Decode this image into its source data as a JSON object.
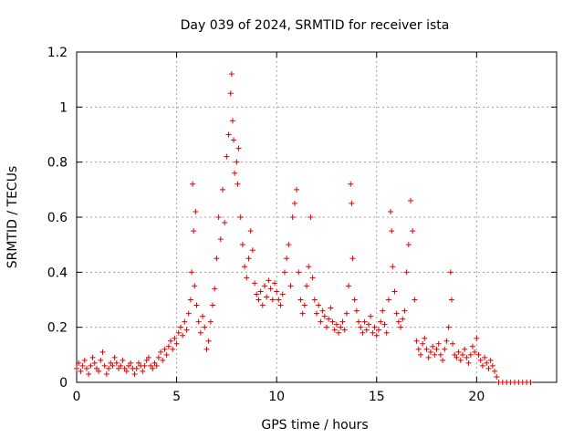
{
  "chart_data": {
    "type": "scatter",
    "title": "Day 039 of 2024, SRMTID for receiver ista",
    "xlabel": "GPS time / hours",
    "ylabel": "SRMTID / TECUs",
    "xlim": [
      0,
      24
    ],
    "ylim": [
      0,
      1.2
    ],
    "grid": true,
    "marker": "+",
    "x_ticks": [
      {
        "value": 0,
        "label": "0"
      },
      {
        "value": 5,
        "label": "5"
      },
      {
        "value": 10,
        "label": "10"
      },
      {
        "value": 15,
        "label": "15"
      },
      {
        "value": 20,
        "label": "20"
      }
    ],
    "y_ticks": [
      {
        "value": 0,
        "label": "0"
      },
      {
        "value": 0.2,
        "label": "0.2"
      },
      {
        "value": 0.4,
        "label": "0.4"
      },
      {
        "value": 0.6,
        "label": "0.6"
      },
      {
        "value": 0.8,
        "label": "0.8"
      },
      {
        "value": 1.0,
        "label": "1"
      },
      {
        "value": 1.2,
        "label": "1.2"
      }
    ],
    "series": [
      {
        "name": "SRMTID",
        "color": "#e00000",
        "points": [
          [
            0.0,
            0.05
          ],
          [
            0.1,
            0.07
          ],
          [
            0.2,
            0.04
          ],
          [
            0.3,
            0.06
          ],
          [
            0.4,
            0.08
          ],
          [
            0.5,
            0.05
          ],
          [
            0.6,
            0.03
          ],
          [
            0.7,
            0.06
          ],
          [
            0.8,
            0.09
          ],
          [
            0.9,
            0.07
          ],
          [
            1.0,
            0.05
          ],
          [
            1.1,
            0.04
          ],
          [
            1.2,
            0.08
          ],
          [
            1.3,
            0.11
          ],
          [
            1.4,
            0.06
          ],
          [
            1.5,
            0.03
          ],
          [
            1.6,
            0.05
          ],
          [
            1.7,
            0.07
          ],
          [
            1.8,
            0.06
          ],
          [
            1.9,
            0.09
          ],
          [
            2.0,
            0.07
          ],
          [
            2.1,
            0.05
          ],
          [
            2.2,
            0.06
          ],
          [
            2.3,
            0.08
          ],
          [
            2.4,
            0.05
          ],
          [
            2.5,
            0.04
          ],
          [
            2.6,
            0.06
          ],
          [
            2.7,
            0.07
          ],
          [
            2.8,
            0.05
          ],
          [
            2.9,
            0.03
          ],
          [
            3.0,
            0.05
          ],
          [
            3.1,
            0.07
          ],
          [
            3.2,
            0.06
          ],
          [
            3.3,
            0.04
          ],
          [
            3.4,
            0.06
          ],
          [
            3.5,
            0.08
          ],
          [
            3.6,
            0.09
          ],
          [
            3.7,
            0.06
          ],
          [
            3.8,
            0.05
          ],
          [
            3.9,
            0.07
          ],
          [
            4.0,
            0.06
          ],
          [
            4.1,
            0.09
          ],
          [
            4.2,
            0.11
          ],
          [
            4.3,
            0.08
          ],
          [
            4.4,
            0.12
          ],
          [
            4.5,
            0.1
          ],
          [
            4.6,
            0.13
          ],
          [
            4.7,
            0.15
          ],
          [
            4.8,
            0.12
          ],
          [
            4.9,
            0.16
          ],
          [
            5.0,
            0.14
          ],
          [
            5.1,
            0.18
          ],
          [
            5.2,
            0.2
          ],
          [
            5.3,
            0.17
          ],
          [
            5.4,
            0.22
          ],
          [
            5.5,
            0.19
          ],
          [
            5.6,
            0.25
          ],
          [
            5.7,
            0.3
          ],
          [
            5.75,
            0.4
          ],
          [
            5.8,
            0.72
          ],
          [
            5.85,
            0.55
          ],
          [
            5.9,
            0.35
          ],
          [
            5.95,
            0.62
          ],
          [
            6.0,
            0.28
          ],
          [
            6.1,
            0.22
          ],
          [
            6.2,
            0.18
          ],
          [
            6.3,
            0.24
          ],
          [
            6.4,
            0.2
          ],
          [
            6.5,
            0.12
          ],
          [
            6.6,
            0.15
          ],
          [
            6.7,
            0.22
          ],
          [
            6.8,
            0.28
          ],
          [
            6.9,
            0.34
          ],
          [
            7.0,
            0.45
          ],
          [
            7.1,
            0.6
          ],
          [
            7.2,
            0.52
          ],
          [
            7.3,
            0.7
          ],
          [
            7.4,
            0.58
          ],
          [
            7.5,
            0.82
          ],
          [
            7.6,
            0.9
          ],
          [
            7.7,
            1.05
          ],
          [
            7.75,
            1.12
          ],
          [
            7.8,
            0.95
          ],
          [
            7.85,
            0.88
          ],
          [
            7.9,
            0.76
          ],
          [
            8.0,
            0.8
          ],
          [
            8.05,
            0.72
          ],
          [
            8.1,
            0.85
          ],
          [
            8.2,
            0.6
          ],
          [
            8.3,
            0.5
          ],
          [
            8.4,
            0.42
          ],
          [
            8.5,
            0.38
          ],
          [
            8.6,
            0.45
          ],
          [
            8.7,
            0.55
          ],
          [
            8.8,
            0.48
          ],
          [
            8.9,
            0.36
          ],
          [
            9.0,
            0.32
          ],
          [
            9.1,
            0.3
          ],
          [
            9.2,
            0.33
          ],
          [
            9.3,
            0.28
          ],
          [
            9.4,
            0.35
          ],
          [
            9.5,
            0.31
          ],
          [
            9.6,
            0.37
          ],
          [
            9.7,
            0.34
          ],
          [
            9.8,
            0.3
          ],
          [
            9.9,
            0.36
          ],
          [
            10.0,
            0.33
          ],
          [
            10.1,
            0.3
          ],
          [
            10.2,
            0.28
          ],
          [
            10.3,
            0.32
          ],
          [
            10.4,
            0.4
          ],
          [
            10.5,
            0.45
          ],
          [
            10.6,
            0.5
          ],
          [
            10.7,
            0.35
          ],
          [
            10.8,
            0.6
          ],
          [
            10.9,
            0.65
          ],
          [
            11.0,
            0.7
          ],
          [
            11.1,
            0.4
          ],
          [
            11.2,
            0.3
          ],
          [
            11.3,
            0.25
          ],
          [
            11.4,
            0.28
          ],
          [
            11.5,
            0.35
          ],
          [
            11.6,
            0.42
          ],
          [
            11.7,
            0.6
          ],
          [
            11.8,
            0.38
          ],
          [
            11.9,
            0.3
          ],
          [
            12.0,
            0.25
          ],
          [
            12.1,
            0.28
          ],
          [
            12.2,
            0.22
          ],
          [
            12.3,
            0.26
          ],
          [
            12.4,
            0.24
          ],
          [
            12.5,
            0.2
          ],
          [
            12.6,
            0.23
          ],
          [
            12.7,
            0.27
          ],
          [
            12.8,
            0.22
          ],
          [
            12.9,
            0.19
          ],
          [
            13.0,
            0.21
          ],
          [
            13.1,
            0.18
          ],
          [
            13.2,
            0.2
          ],
          [
            13.3,
            0.22
          ],
          [
            13.4,
            0.19
          ],
          [
            13.5,
            0.25
          ],
          [
            13.6,
            0.35
          ],
          [
            13.7,
            0.72
          ],
          [
            13.75,
            0.65
          ],
          [
            13.8,
            0.45
          ],
          [
            13.9,
            0.3
          ],
          [
            14.0,
            0.26
          ],
          [
            14.1,
            0.22
          ],
          [
            14.2,
            0.2
          ],
          [
            14.3,
            0.18
          ],
          [
            14.4,
            0.22
          ],
          [
            14.5,
            0.19
          ],
          [
            14.6,
            0.21
          ],
          [
            14.7,
            0.24
          ],
          [
            14.8,
            0.18
          ],
          [
            14.9,
            0.2
          ],
          [
            15.0,
            0.17
          ],
          [
            15.1,
            0.19
          ],
          [
            15.2,
            0.22
          ],
          [
            15.3,
            0.26
          ],
          [
            15.4,
            0.21
          ],
          [
            15.5,
            0.18
          ],
          [
            15.6,
            0.3
          ],
          [
            15.7,
            0.62
          ],
          [
            15.75,
            0.55
          ],
          [
            15.8,
            0.42
          ],
          [
            15.9,
            0.33
          ],
          [
            16.0,
            0.25
          ],
          [
            16.1,
            0.22
          ],
          [
            16.2,
            0.2
          ],
          [
            16.3,
            0.23
          ],
          [
            16.4,
            0.26
          ],
          [
            16.5,
            0.4
          ],
          [
            16.6,
            0.5
          ],
          [
            16.7,
            0.66
          ],
          [
            16.8,
            0.55
          ],
          [
            16.9,
            0.3
          ],
          [
            17.0,
            0.15
          ],
          [
            17.1,
            0.12
          ],
          [
            17.2,
            0.1
          ],
          [
            17.3,
            0.14
          ],
          [
            17.4,
            0.16
          ],
          [
            17.5,
            0.12
          ],
          [
            17.6,
            0.09
          ],
          [
            17.7,
            0.11
          ],
          [
            17.8,
            0.13
          ],
          [
            17.9,
            0.1
          ],
          [
            18.0,
            0.12
          ],
          [
            18.1,
            0.14
          ],
          [
            18.2,
            0.1
          ],
          [
            18.3,
            0.08
          ],
          [
            18.4,
            0.12
          ],
          [
            18.5,
            0.15
          ],
          [
            18.6,
            0.2
          ],
          [
            18.7,
            0.4
          ],
          [
            18.75,
            0.3
          ],
          [
            18.8,
            0.14
          ],
          [
            18.9,
            0.1
          ],
          [
            19.0,
            0.09
          ],
          [
            19.1,
            0.11
          ],
          [
            19.2,
            0.08
          ],
          [
            19.3,
            0.1
          ],
          [
            19.4,
            0.12
          ],
          [
            19.5,
            0.09
          ],
          [
            19.6,
            0.07
          ],
          [
            19.7,
            0.1
          ],
          [
            19.8,
            0.13
          ],
          [
            19.9,
            0.11
          ],
          [
            20.0,
            0.16
          ],
          [
            20.1,
            0.1
          ],
          [
            20.2,
            0.08
          ],
          [
            20.3,
            0.06
          ],
          [
            20.4,
            0.09
          ],
          [
            20.5,
            0.07
          ],
          [
            20.6,
            0.05
          ],
          [
            20.7,
            0.08
          ],
          [
            20.8,
            0.06
          ],
          [
            20.9,
            0.04
          ],
          [
            21.0,
            0.02
          ],
          [
            21.1,
            0.0
          ],
          [
            21.3,
            0.0
          ],
          [
            21.5,
            0.0
          ],
          [
            21.7,
            0.0
          ],
          [
            21.9,
            0.0
          ],
          [
            22.1,
            0.0
          ],
          [
            22.3,
            0.0
          ],
          [
            22.5,
            0.0
          ],
          [
            22.7,
            0.0
          ]
        ]
      }
    ]
  }
}
